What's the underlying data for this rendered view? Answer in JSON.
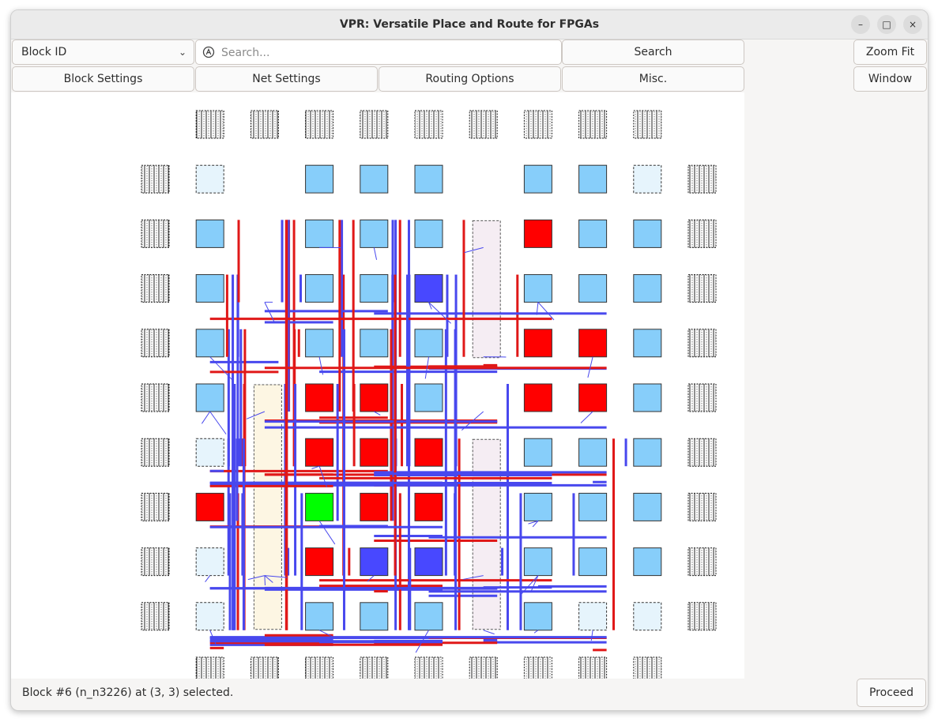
{
  "window": {
    "title": "VPR: Versatile Place and Route for FPGAs",
    "controls": [
      "–",
      "□",
      "×"
    ]
  },
  "toolbar": {
    "block_id_select": "Block ID",
    "search_placeholder": "Search...",
    "search_button": "Search",
    "zoom_fit_button": "Zoom Fit",
    "block_settings_button": "Block Settings",
    "net_settings_button": "Net Settings",
    "routing_options_button": "Routing Options",
    "misc_button": "Misc.",
    "window_button": "Window"
  },
  "status": {
    "message": "Block #6 (n_n3226) at (3, 3) selected.",
    "proceed_button": "Proceed"
  },
  "colors": {
    "clb": "#87cefa",
    "clb_empty": "#e6f4fc",
    "clb_highlight_red": "#ff0000",
    "clb_selected": "#00ff00",
    "clb_fanout": "#4848ff",
    "net": "#4848ee",
    "net_critical": "#e01818",
    "memory_column": "#fdf6e3",
    "mult_column": "#f5edf3"
  },
  "fpga_grid": {
    "columns": 11,
    "rows": 11,
    "selected_block": {
      "x": 3,
      "y": 3
    },
    "red_blocks": [
      [
        7,
        8
      ],
      [
        7,
        6
      ],
      [
        8,
        6
      ],
      [
        3,
        5
      ],
      [
        4,
        5
      ],
      [
        7,
        5
      ],
      [
        8,
        5
      ],
      [
        3,
        4
      ],
      [
        4,
        4
      ],
      [
        5,
        4
      ],
      [
        1,
        3
      ],
      [
        4,
        3
      ],
      [
        5,
        3
      ],
      [
        3,
        2
      ]
    ],
    "fanout_blocks": [
      [
        5,
        7
      ],
      [
        4,
        2
      ],
      [
        5,
        2
      ]
    ],
    "empty_blocks": [
      [
        1,
        9
      ],
      [
        9,
        9
      ],
      [
        1,
        4
      ],
      [
        1,
        2
      ],
      [
        1,
        1
      ],
      [
        8,
        1
      ],
      [
        9,
        1
      ]
    ]
  }
}
